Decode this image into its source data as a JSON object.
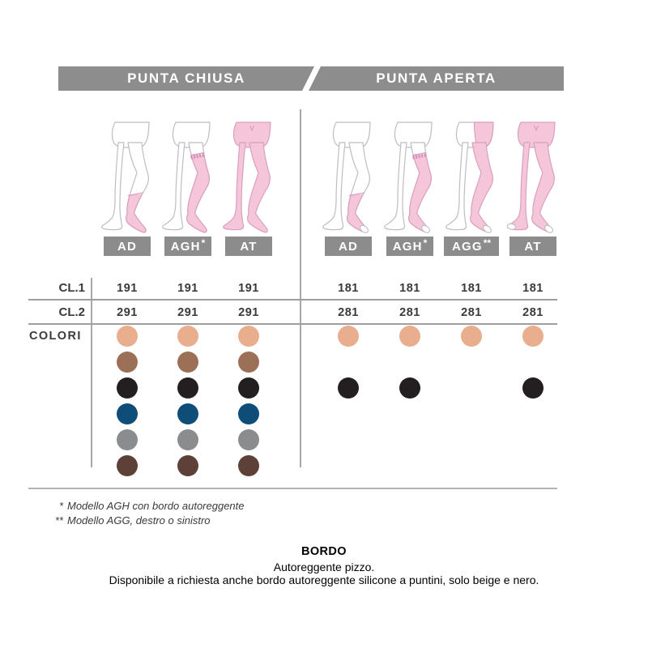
{
  "header": {
    "left": "PUNTA CHIUSA",
    "right": "PUNTA APERTA"
  },
  "row_labels": {
    "cl1": "CL.1",
    "cl2": "CL.2",
    "colori": "COLORI"
  },
  "color_order": [
    "beige",
    "marrone",
    "nero",
    "blu",
    "grigio",
    "moka"
  ],
  "palette": {
    "beige": "#e9ae8d",
    "marrone": "#9c7057",
    "nero": "#231f20",
    "blu": "#0e4d78",
    "grigio": "#8a8c8e",
    "moka": "#5d4037"
  },
  "accent_colors": {
    "bar_gray": "#8d8d8d",
    "stocking_pink": "#f5c5da",
    "stocking_pink_outline": "#d9a0be",
    "bare_leg_outline": "#bdbdc4"
  },
  "groups": [
    {
      "title": "PUNTA CHIUSA",
      "open_toe": false,
      "columns": [
        {
          "label": "AD",
          "type": "AD",
          "cl1": "191",
          "cl2": "291",
          "colors": [
            "beige",
            "marrone",
            "nero",
            "blu",
            "grigio",
            "moka"
          ]
        },
        {
          "label": "AGH*",
          "type": "AGH",
          "cl1": "191",
          "cl2": "291",
          "colors": [
            "beige",
            "marrone",
            "nero",
            "blu",
            "grigio",
            "moka"
          ]
        },
        {
          "label": "AT",
          "type": "AT",
          "cl1": "191",
          "cl2": "291",
          "colors": [
            "beige",
            "marrone",
            "nero",
            "blu",
            "grigio",
            "moka"
          ]
        }
      ]
    },
    {
      "title": "PUNTA APERTA",
      "open_toe": true,
      "columns": [
        {
          "label": "AD",
          "type": "AD",
          "cl1": "181",
          "cl2": "281",
          "colors": [
            "beige",
            "nero"
          ]
        },
        {
          "label": "AGH*",
          "type": "AGH",
          "cl1": "181",
          "cl2": "281",
          "colors": [
            "beige",
            "nero"
          ]
        },
        {
          "label": "AGG**",
          "type": "AGG",
          "cl1": "181",
          "cl2": "281",
          "colors": [
            "beige"
          ]
        },
        {
          "label": "AT",
          "type": "AT",
          "cl1": "181",
          "cl2": "281",
          "colors": [
            "beige",
            "nero"
          ]
        }
      ]
    }
  ],
  "footnotes": [
    {
      "marker": "*",
      "text": "Modello AGH con bordo autoreggente"
    },
    {
      "marker": "**",
      "text": "Modello AGG, destro o sinistro"
    }
  ],
  "footer": {
    "title": "BORDO",
    "line1": "Autoreggente pizzo.",
    "line2": "Disponibile a richiesta anche bordo autoreggente silicone a puntini, solo beige e nero."
  }
}
